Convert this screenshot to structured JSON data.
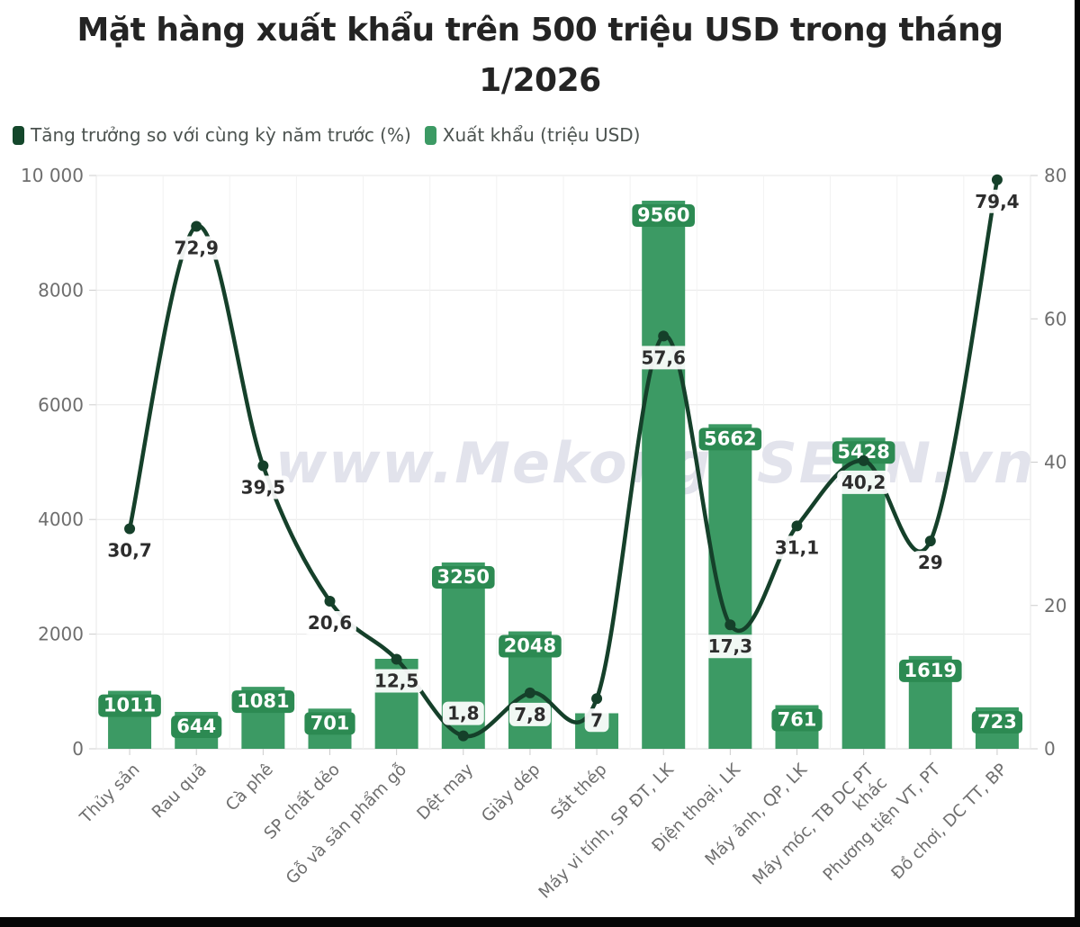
{
  "title": {
    "line1": "Mặt hàng xuất khẩu trên 500 triệu USD trong tháng",
    "line2": "1/2026"
  },
  "watermark": "www.MekongASEAN.vn",
  "legend": {
    "items": [
      {
        "label": "Tăng trưởng so với cùng kỳ năm trước (%)",
        "series": "growth-line"
      },
      {
        "label": "Xuất khẩu (triệu USD)",
        "series": "export-bar"
      }
    ]
  },
  "colors": {
    "bar": "#3c9a64",
    "bar_label_bg": "#2c8a52",
    "bar_label_text": "#ffffff",
    "line": "#15402a",
    "line_swatch": "#14472b",
    "line_label_bg": "#ffffff",
    "line_label_text": "#2d2d2d",
    "grid": "#e7e7e7",
    "grid_v": "#f2f2f2",
    "axis_line": "#d9d9d9",
    "tick": "#cccccc",
    "axis_text": "#6e6e6e",
    "title_text": "#242424",
    "legend_text": "#4c5350",
    "watermark": "#e2e3ec",
    "footer": "#060606"
  },
  "chart_data": {
    "type": "bar+line combo",
    "title": "Mặt hàng xuất khẩu trên 500 triệu USD trong tháng 1/2026",
    "categories": [
      "Thủy sản",
      "Rau quả",
      "Cà phê",
      "SP chất dẻo",
      "Gỗ và sản phẩm gỗ",
      "Dệt may",
      "Giày dép",
      "Sắt thép",
      "Máy vi tính, SP ĐT, LK",
      "Điện thoại, LK",
      "Máy ảnh, QP, LK",
      "Máy móc, TB DC PT khác",
      "Phương tiện VT, PT",
      "Đồ chơi, DC TT, BP"
    ],
    "category_lines": [
      [
        "Thủy sản"
      ],
      [
        "Rau quả"
      ],
      [
        "Cà phê"
      ],
      [
        "SP chất dẻo"
      ],
      [
        "Gỗ và sản phẩm gỗ"
      ],
      [
        "Dệt may"
      ],
      [
        "Giày dép"
      ],
      [
        "Sắt thép"
      ],
      [
        "Máy vi tính, SP ĐT, LK"
      ],
      [
        "Điện thoại, LK"
      ],
      [
        "Máy ảnh, QP, LK"
      ],
      [
        "Máy móc, TB DC PT",
        "khác"
      ],
      [
        "Phương tiện VT, PT"
      ],
      [
        "Đồ chơi, DC TT, BP"
      ]
    ],
    "series": [
      {
        "name": "Xuất khẩu (triệu USD)",
        "type": "bar",
        "axis": "left",
        "values": [
          1011,
          644,
          1081,
          701,
          1570,
          3250,
          2048,
          620,
          9560,
          5662,
          761,
          5428,
          1619,
          723
        ],
        "labels": [
          "1011",
          "644",
          "1081",
          "701",
          null,
          "3250",
          "2048",
          null,
          "9560",
          "5662",
          "761",
          "5428",
          "1619",
          "723"
        ]
      },
      {
        "name": "Tăng trưởng so với cùng kỳ năm trước (%)",
        "type": "line",
        "axis": "right",
        "values": [
          30.7,
          72.9,
          39.5,
          20.6,
          12.5,
          1.8,
          7.8,
          7,
          57.6,
          17.3,
          31.1,
          40.2,
          29,
          79.4
        ],
        "labels": [
          "30,7",
          "72,9",
          "39,5",
          "20,6",
          "12,5",
          "1,8",
          "7,8",
          "7",
          "57,6",
          "17,3",
          "31,1",
          "40,2",
          "29",
          "79,4"
        ]
      }
    ],
    "left_axis": {
      "min": 0,
      "max": 10000,
      "ticks": [
        0,
        2000,
        4000,
        6000,
        8000,
        10000
      ],
      "tick_labels": [
        "0",
        "2000",
        "4000",
        "6000",
        "8000",
        "10 000"
      ]
    },
    "right_axis": {
      "min": 0,
      "max": 80,
      "ticks": [
        0,
        20,
        40,
        60,
        80
      ],
      "tick_labels": [
        "0",
        "20",
        "40",
        "60",
        "80"
      ]
    },
    "grid": true,
    "legend_position": "top-left"
  }
}
